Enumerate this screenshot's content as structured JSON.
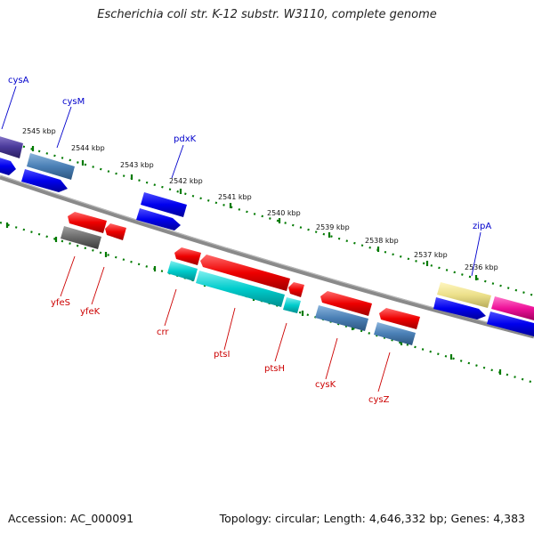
{
  "title": "Escherichia coli str. K-12 substr. W3110, complete genome",
  "accession": "Accession: AC_000091",
  "topology": "Topology: circular; Length: 4,646,332 bp; Genes: 4,383",
  "kbp_labels": [
    "2545 kbp",
    "2544 kbp",
    "2543 kbp",
    "2542 kbp",
    "2541 kbp",
    "2540 kbp",
    "2539 kbp",
    "2538 kbp",
    "2537 kbp",
    "2536 kbp"
  ],
  "gene_labels": {
    "cysA": "cysA",
    "cysM": "cysM",
    "pdxK": "pdxK",
    "zipA": "zipA",
    "yfeS": "yfeS",
    "yfeK": "yfeK",
    "crr": "crr",
    "ptsI": "ptsI",
    "ptsH": "ptsH",
    "cysK": "cysK",
    "cysZ": "cysZ"
  },
  "colors": {
    "forward_label": "#0000cc",
    "reverse_label": "#cc0000",
    "backbone": "#7a7a7a",
    "tick_dots": "#007a00"
  }
}
